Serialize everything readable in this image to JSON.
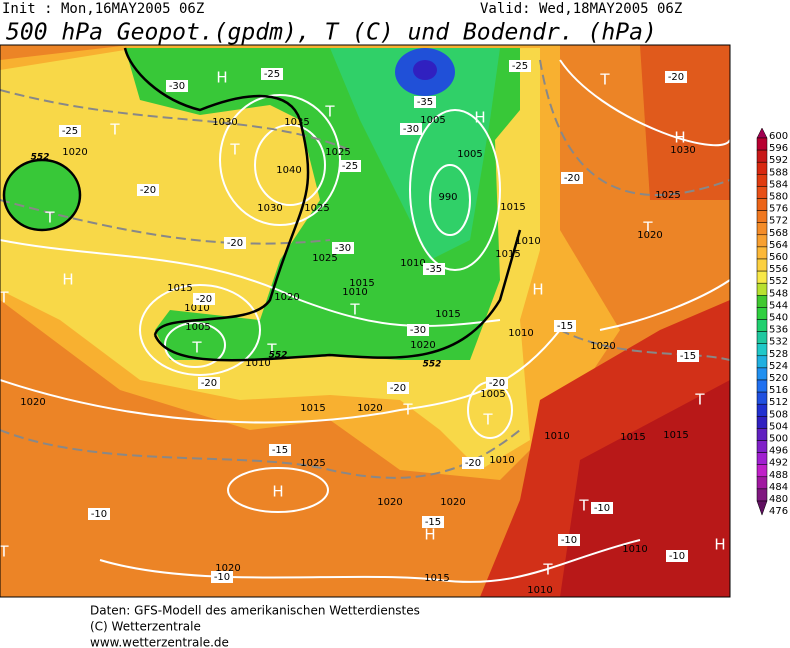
{
  "header": {
    "init": "Init : Mon,16MAY2005 06Z",
    "valid": "Valid: Wed,18MAY2005 06Z",
    "title": "500 hPa Geopot.(gpdm), T (C) und Bodendr. (hPa)"
  },
  "map_labels": {
    "pressure_systems": [
      "H",
      "T",
      "T",
      "T",
      "H",
      "T",
      "H",
      "T",
      "H",
      "T",
      "T",
      "T",
      "T",
      "H",
      "T",
      "T",
      "T",
      "H",
      "T",
      "H",
      "T",
      "H",
      "T",
      "T"
    ],
    "isobars": [
      "1030",
      "1035",
      "1040",
      "1030",
      "1025",
      "1025",
      "1020",
      "1025",
      "1020",
      "1015",
      "1010",
      "1005",
      "1010",
      "1015",
      "1010",
      "1010",
      "1015",
      "1020",
      "1005",
      "1005",
      "990",
      "1015",
      "1010",
      "1015",
      "1010",
      "1030",
      "1025",
      "1020",
      "1020",
      "1020",
      "1015",
      "1020",
      "1005",
      "1010",
      "1010",
      "1015",
      "1015",
      "1025",
      "1020",
      "1020",
      "1015",
      "1020",
      "1010",
      "1010"
    ],
    "temperatures": [
      "-25",
      "-30",
      "-25",
      "-20",
      "-20",
      "-25",
      "-30",
      "-35",
      "-30",
      "-25",
      "-20",
      "-20",
      "-35",
      "-30",
      "-20",
      "-20",
      "-20",
      "-20",
      "-15",
      "-15",
      "-15",
      "-20",
      "-15",
      "-10",
      "-10",
      "-10",
      "-10",
      "-10"
    ],
    "geopotential": [
      "552",
      "552",
      "552"
    ]
  },
  "colorbar": {
    "labels": [
      600,
      596,
      592,
      588,
      584,
      580,
      576,
      572,
      568,
      564,
      560,
      556,
      552,
      548,
      544,
      540,
      536,
      532,
      528,
      524,
      520,
      516,
      512,
      508,
      504,
      500,
      496,
      492,
      488,
      484,
      480,
      476
    ],
    "colors": [
      "#a00050",
      "#b80030",
      "#c81818",
      "#d82810",
      "#e03c10",
      "#e85018",
      "#ec6418",
      "#f07820",
      "#f48c28",
      "#f8a030",
      "#fcb838",
      "#fcd040",
      "#f8e848",
      "#b8e030",
      "#40c830",
      "#30d040",
      "#20d070",
      "#20c8a0",
      "#20c8c8",
      "#20b0e0",
      "#2090f0",
      "#2070f0",
      "#2050e0",
      "#2030d0",
      "#3020c0",
      "#6020c0",
      "#8020c8",
      "#a020d0",
      "#c020c8",
      "#a018a0",
      "#801880",
      "#601060"
    ]
  },
  "footer": [
    "Daten: GFS-Modell des amerikanischen Wetterdienstes",
    "(C) Wetterzentrale",
    "www.wetterzentrale.de"
  ]
}
